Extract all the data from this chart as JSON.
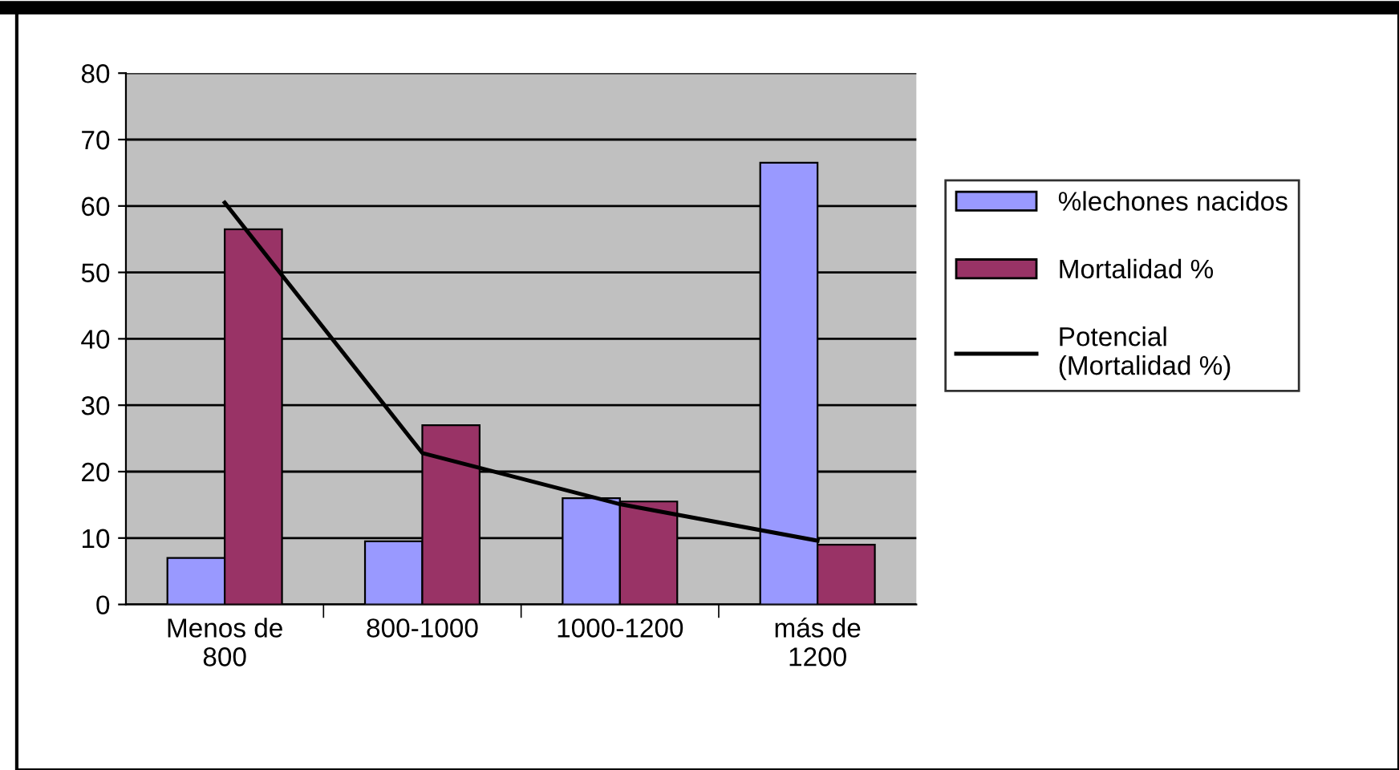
{
  "chart_data": {
    "type": "bar",
    "categories": [
      "Menos de\n800",
      "800-1000",
      "1000-1200",
      "más de\n1200"
    ],
    "series": [
      {
        "name": "%lechones nacidos",
        "color": "#9999ff",
        "values": [
          7,
          9.5,
          16,
          66.5
        ]
      },
      {
        "name": "Mortalidad %",
        "color": "#993366",
        "values": [
          56.5,
          27,
          15.5,
          9
        ]
      },
      {
        "name": "Potencial\n(Mortalidad %)",
        "type": "line",
        "color": "#000000",
        "values": [
          60.5,
          22.8,
          15.1,
          9.6
        ]
      }
    ],
    "ylim": [
      0,
      80
    ],
    "yticks": [
      0,
      10,
      20,
      30,
      40,
      50,
      60,
      70,
      80
    ],
    "grid": "y",
    "legend": "right"
  }
}
